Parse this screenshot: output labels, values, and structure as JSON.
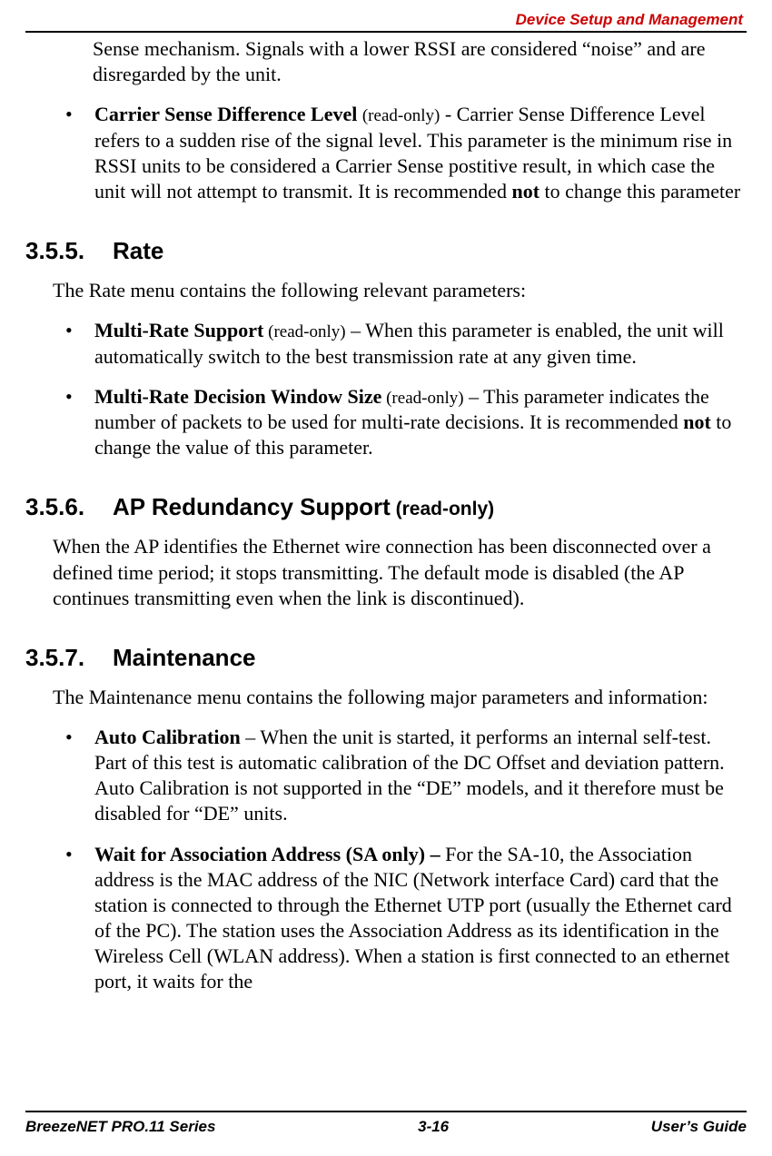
{
  "header": {
    "title": "Device Setup and Management"
  },
  "intro_continuation": "Sense mechanism. Signals with a lower RSSI are considered “noise” and are disregarded by the unit.",
  "bullet_carrier": {
    "term": "Carrier Sense Difference Level",
    "readonly": "(read-only)",
    "sep": " - ",
    "text_a": "Carrier Sense Difference Level refers to a sudden rise of the signal level. This parameter is the minimum rise in RSSI units to be considered a Carrier Sense postitive result, in which case the unit will not attempt to transmit. It is recommended ",
    "not": "not",
    "text_b": " to change this parameter"
  },
  "sec_rate": {
    "num": "3.5.5.",
    "title": "Rate",
    "intro": "The Rate menu contains the following relevant parameters:",
    "b1": {
      "term": "Multi-Rate Support",
      "readonly": " (read-only)",
      "text": " – When this parameter is enabled, the unit will automatically switch to the best transmission rate at any given time."
    },
    "b2": {
      "term": "Multi-Rate Decision Window Size",
      "readonly": " (read-only)",
      "text_a": " – This parameter indicates the number of packets to be used for multi-rate decisions. It is recommended ",
      "not": "not",
      "text_b": " to change the value of this parameter."
    }
  },
  "sec_apred": {
    "num": "3.5.6.",
    "title": "AP Redundancy Support",
    "readonly": " (read-only)",
    "para": "When the AP identifies the Ethernet wire connection has been disconnected over a defined time period; it stops transmitting. The default mode is disabled (the AP continues transmitting even when the link is discontinued)."
  },
  "sec_maint": {
    "num": "3.5.7.",
    "title": "Maintenance",
    "intro": "The Maintenance menu contains the following major parameters and information:",
    "b1": {
      "term": "Auto Calibration",
      "text": " – When the unit is started, it performs an internal self-test. Part of this test is automatic calibration of the DC Offset and deviation pattern. Auto Calibration is not supported in the “DE” models, and it therefore must be disabled for “DE” units."
    },
    "b2": {
      "term": "Wait for Association Address  (SA only) – ",
      "text": "For the SA-10, the Association address is the MAC address of the NIC (Network interface Card) card that the station is connected to through the Ethernet UTP port (usually the Ethernet card of the PC). The station uses the Association Address as its identification in the Wireless Cell (WLAN address). When a station is first connected to an ethernet port, it waits for the"
    }
  },
  "footer": {
    "left": "BreezeNET PRO.11 Series",
    "center": "3-16",
    "right": "User’s Guide"
  }
}
